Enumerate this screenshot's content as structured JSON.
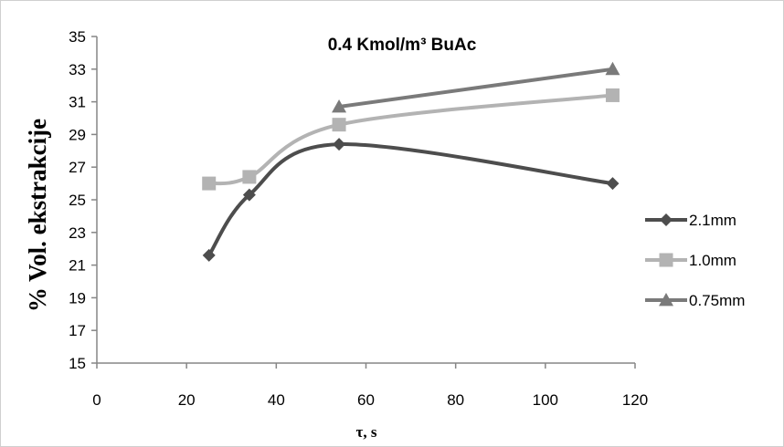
{
  "chart_data": {
    "type": "line",
    "title": "0.4 Kmol/m³ BuAc",
    "xlabel": "τ, s",
    "ylabel": "% Vol. ekstrakcije",
    "xlim": [
      0,
      120
    ],
    "ylim": [
      15,
      35
    ],
    "xticks": [
      "0",
      "20",
      "40",
      "60",
      "80",
      "100",
      "120"
    ],
    "yticks": [
      "15",
      "17",
      "19",
      "21",
      "23",
      "25",
      "27",
      "29",
      "31",
      "33",
      "35"
    ],
    "grid": false,
    "legend_position": "right",
    "series": [
      {
        "name": "2.1mm",
        "color": "#4d4d4d",
        "marker": "diamond",
        "x": [
          25,
          34,
          54,
          115
        ],
        "y": [
          21.6,
          25.3,
          28.4,
          26.0
        ]
      },
      {
        "name": "1.0mm",
        "color": "#b3b3b3",
        "marker": "square",
        "x": [
          25,
          34,
          54,
          115
        ],
        "y": [
          26.0,
          26.4,
          29.6,
          31.4
        ]
      },
      {
        "name": "0.75mm",
        "color": "#7a7a7a",
        "marker": "triangle",
        "x": [
          54,
          115
        ],
        "y": [
          30.7,
          33.0
        ]
      }
    ]
  }
}
